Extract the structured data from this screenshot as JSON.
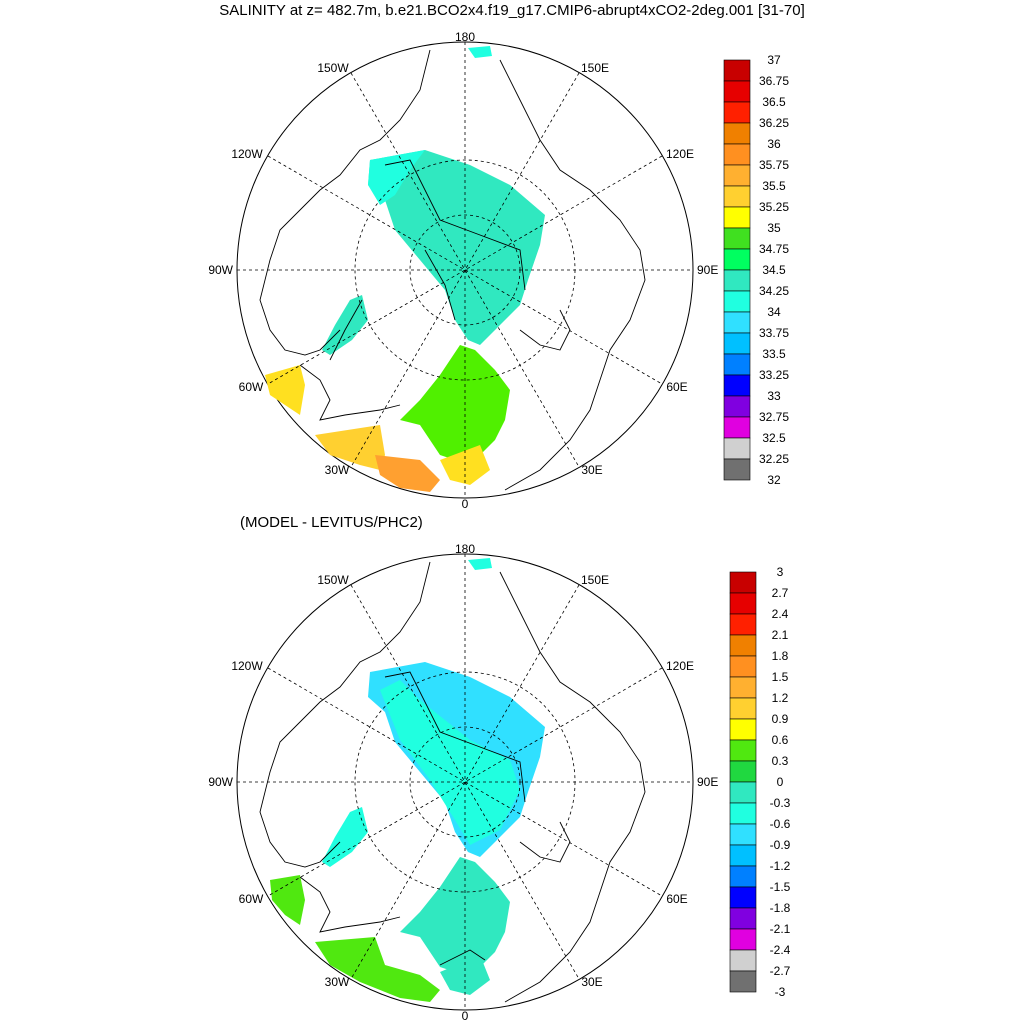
{
  "title": "SALINITY at z= 482.7m, b.e21.BCO2x4.f19_g17.CMIP6-abrupt4xCO2-2deg.001 [31-70]",
  "subtitle": "(MODEL - LEVITUS/PHC2)",
  "maps": [
    {
      "name": "salinity",
      "lon_labels": {
        "top": "180",
        "bottom": "0",
        "left": "90W",
        "right": "90E",
        "ul": "150W",
        "ur": "150E",
        "ul2": "120W",
        "ur2": "120E",
        "ll": "60W",
        "lr": "60E",
        "ll2": "30W",
        "lr2": "30E"
      },
      "colorbar": {
        "labels": [
          "37",
          "36.75",
          "36.5",
          "36.25",
          "36",
          "35.75",
          "35.5",
          "35.25",
          "35",
          "34.75",
          "34.5",
          "34.25",
          "34",
          "33.75",
          "33.5",
          "33.25",
          "33",
          "32.75",
          "32.5",
          "32.25",
          "32"
        ],
        "colors": [
          "#c80000",
          "#e60000",
          "#ff2000",
          "#f08000",
          "#ff9020",
          "#ffb030",
          "#ffd030",
          "#ffff00",
          "#40e020",
          "#00ff60",
          "#30e8c0",
          "#20ffe0",
          "#30e0ff",
          "#00c0ff",
          "#0080ff",
          "#0000ff",
          "#8000e0",
          "#e000e0",
          "#d0d0d0",
          "#707070"
        ]
      }
    },
    {
      "name": "difference",
      "lon_labels": {
        "top": "180",
        "bottom": "0",
        "left": "90W",
        "right": "90E",
        "ul": "150W",
        "ur": "150E",
        "ul2": "120W",
        "ur2": "120E",
        "ll": "60W",
        "lr": "60E",
        "ll2": "30W",
        "lr2": "30E"
      },
      "colorbar": {
        "labels": [
          "3",
          "2.7",
          "2.4",
          "2.1",
          "1.8",
          "1.5",
          "1.2",
          "0.9",
          "0.6",
          "0.3",
          "0",
          "-0.3",
          "-0.6",
          "-0.9",
          "-1.2",
          "-1.5",
          "-1.8",
          "-2.1",
          "-2.4",
          "-2.7",
          "-3"
        ],
        "colors": [
          "#c80000",
          "#e60000",
          "#ff2000",
          "#f08000",
          "#ff9020",
          "#ffb030",
          "#ffd030",
          "#ffff00",
          "#50e810",
          "#20d840",
          "#30e8c0",
          "#20ffe0",
          "#30e0ff",
          "#00c0ff",
          "#0080ff",
          "#0000ff",
          "#8000e0",
          "#e000e0",
          "#d0d0d0",
          "#707070"
        ]
      }
    }
  ]
}
